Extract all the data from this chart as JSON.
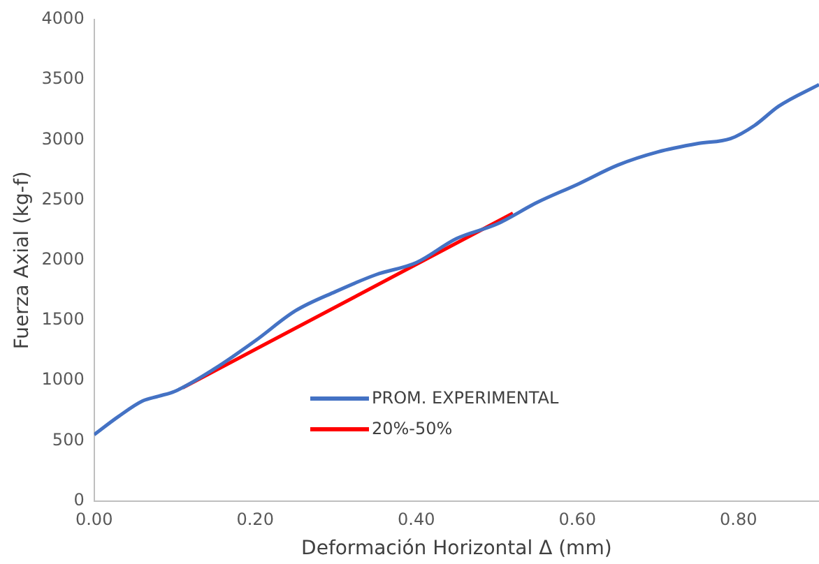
{
  "chart_data": {
    "type": "line",
    "xlabel": "Deformación Horizontal Δ (mm)",
    "ylabel": "Fuerza Axial (kg-f)",
    "xlim": [
      0,
      0.9
    ],
    "xticks": [
      {
        "value": 0,
        "label": "0.00"
      },
      {
        "value": 0.2,
        "label": "0.20"
      },
      {
        "value": 0.4,
        "label": "0.40"
      },
      {
        "value": 0.6,
        "label": "0.60"
      },
      {
        "value": 0.8,
        "label": "0.80"
      }
    ],
    "ylim": [
      0,
      4000
    ],
    "yticks": [
      0,
      500,
      1000,
      1500,
      2000,
      2500,
      3000,
      3500,
      4000
    ],
    "grid": false,
    "legend": "bottom",
    "marker": "none",
    "line_style": "solid",
    "series": [
      {
        "name": "PROM. EXPERIMENTAL",
        "color": "#4472c4",
        "x": [
          0,
          0.03,
          0.06,
          0.08,
          0.1,
          0.15,
          0.2,
          0.25,
          0.3,
          0.35,
          0.4,
          0.45,
          0.5,
          0.55,
          0.6,
          0.65,
          0.7,
          0.75,
          0.79,
          0.82,
          0.85,
          0.9
        ],
        "values": [
          550,
          700,
          830,
          870,
          910,
          1100,
          1330,
          1580,
          1740,
          1880,
          1980,
          2180,
          2300,
          2480,
          2630,
          2790,
          2900,
          2970,
          3010,
          3120,
          3280,
          3460
        ]
      },
      {
        "name": "20%-50%",
        "color": "#ff0000",
        "x": [
          0.11,
          0.52
        ],
        "values": [
          940,
          2390
        ]
      }
    ]
  }
}
